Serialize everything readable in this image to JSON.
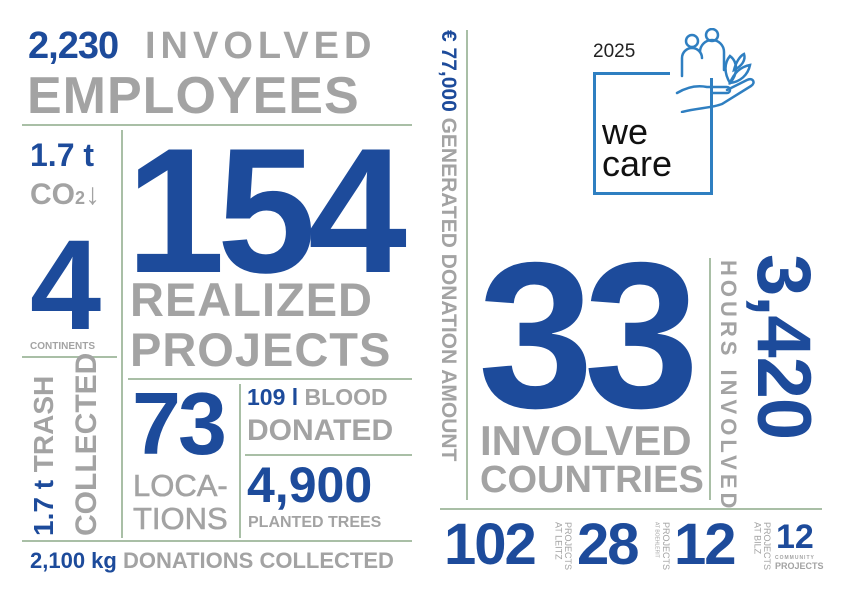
{
  "employees": {
    "value": "2,230",
    "label1": "INVOLVED",
    "label2": "EMPLOYEES"
  },
  "co2": {
    "value": "1.7 t",
    "label": "CO",
    "sub": "2",
    "arrow": "↓"
  },
  "continents": {
    "value": "4",
    "label": "CONTINENTS"
  },
  "trash": {
    "value": "1.7 t",
    "label1": "TRASH",
    "label2": "COLLECTED"
  },
  "projects": {
    "value": "154",
    "label1": "REALIZED",
    "label2": "PROJECTS"
  },
  "locations": {
    "value": "73",
    "label1": "LOCA-",
    "label2": "TIONS"
  },
  "blood": {
    "value": "109 l",
    "label1": "BLOOD",
    "label2": "DONATED"
  },
  "trees": {
    "value": "4,900",
    "label": "PLANTED TREES"
  },
  "donations": {
    "value": "2,100 kg",
    "label": "DONATIONS COLLECTED"
  },
  "donation_amount": {
    "value": "€ 77,000",
    "label": "GENERATED DONATION AMOUNT"
  },
  "logo": {
    "year": "2025",
    "line1": "we",
    "line2": "care",
    "icon": "people-hand-plant-icon"
  },
  "countries": {
    "value": "33",
    "label1": "INVOLVED",
    "label2": "COUNTRIES"
  },
  "hours": {
    "value": "3,420",
    "label": "HOURS INVOLVED"
  },
  "sites": [
    {
      "value": "102",
      "label1": "PROJECTS",
      "label2": "AT LEITZ"
    },
    {
      "value": "28",
      "label1": "PROJECTS",
      "label2": "AT BOEHLERIT"
    },
    {
      "value": "12",
      "label1": "PROJECTS",
      "label2": "AT BILZ"
    }
  ],
  "community": {
    "value": "12",
    "label1": "COMMUNITY",
    "label2": "PROJECTS"
  },
  "colors": {
    "blue": "#1d4b9b",
    "gray": "#a3a3a3",
    "rule": "#a9bfa6",
    "logo_blue": "#2f7fc1"
  }
}
